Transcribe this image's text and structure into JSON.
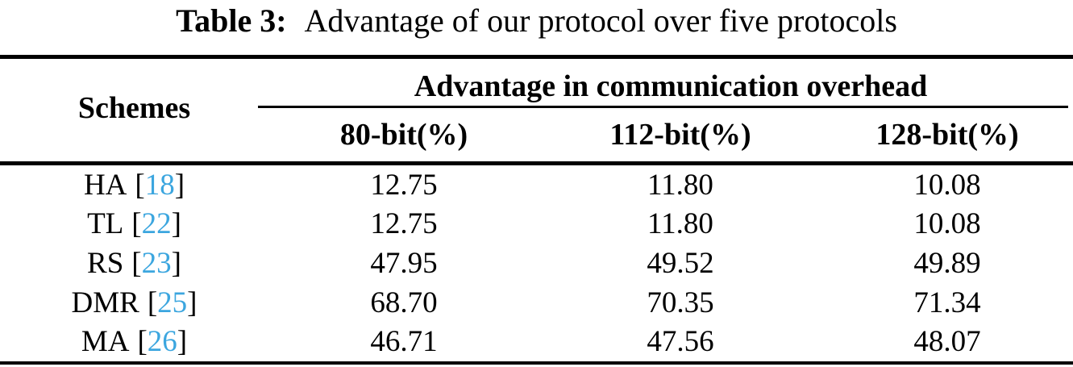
{
  "caption": {
    "label": "Table 3:",
    "text": "Advantage of our protocol over five protocols"
  },
  "table": {
    "schemes_header": "Schemes",
    "group_header": "Advantage in communication overhead",
    "columns": [
      "80-bit(%)",
      "112-bit(%)",
      "128-bit(%)"
    ],
    "brackets": {
      "open": "[",
      "close": "]"
    },
    "rows": [
      {
        "scheme": "HA",
        "cite": "18",
        "values": [
          "12.75",
          "11.80",
          "10.08"
        ]
      },
      {
        "scheme": "TL",
        "cite": "22",
        "values": [
          "12.75",
          "11.80",
          "10.08"
        ]
      },
      {
        "scheme": "RS",
        "cite": "23",
        "values": [
          "47.95",
          "49.52",
          "49.89"
        ]
      },
      {
        "scheme": "DMR",
        "cite": "25",
        "values": [
          "68.70",
          "70.35",
          "71.34"
        ]
      },
      {
        "scheme": "MA",
        "cite": "26",
        "values": [
          "46.71",
          "47.56",
          "48.07"
        ]
      }
    ]
  },
  "colors": {
    "text": "#000000",
    "citation": "#3CA6DF",
    "background": "#ffffff"
  }
}
